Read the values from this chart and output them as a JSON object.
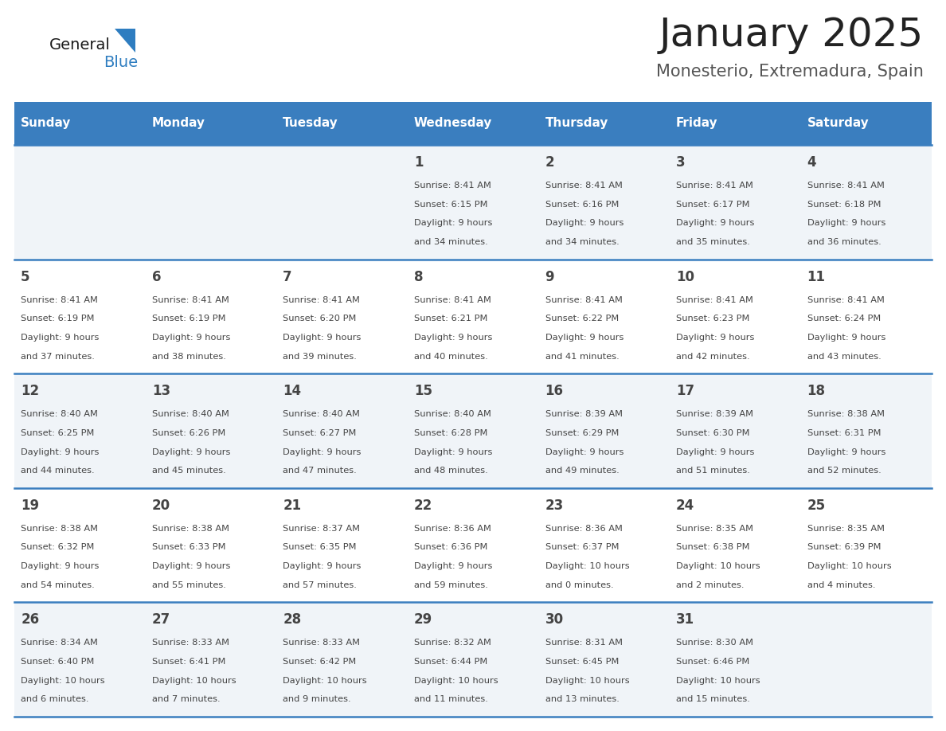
{
  "title": "January 2025",
  "subtitle": "Monesterio, Extremadura, Spain",
  "days_of_week": [
    "Sunday",
    "Monday",
    "Tuesday",
    "Wednesday",
    "Thursday",
    "Friday",
    "Saturday"
  ],
  "header_bg": "#3a7ebf",
  "header_text": "#ffffff",
  "cell_bg_odd": "#f0f4f8",
  "cell_bg_even": "#ffffff",
  "line_color": "#3a7ebf",
  "text_color": "#444444",
  "calendar_data": [
    [
      null,
      null,
      null,
      {
        "day": 1,
        "sunrise": "8:41 AM",
        "sunset": "6:15 PM",
        "dl_hours": 9,
        "dl_minutes": 34
      },
      {
        "day": 2,
        "sunrise": "8:41 AM",
        "sunset": "6:16 PM",
        "dl_hours": 9,
        "dl_minutes": 34
      },
      {
        "day": 3,
        "sunrise": "8:41 AM",
        "sunset": "6:17 PM",
        "dl_hours": 9,
        "dl_minutes": 35
      },
      {
        "day": 4,
        "sunrise": "8:41 AM",
        "sunset": "6:18 PM",
        "dl_hours": 9,
        "dl_minutes": 36
      }
    ],
    [
      {
        "day": 5,
        "sunrise": "8:41 AM",
        "sunset": "6:19 PM",
        "dl_hours": 9,
        "dl_minutes": 37
      },
      {
        "day": 6,
        "sunrise": "8:41 AM",
        "sunset": "6:19 PM",
        "dl_hours": 9,
        "dl_minutes": 38
      },
      {
        "day": 7,
        "sunrise": "8:41 AM",
        "sunset": "6:20 PM",
        "dl_hours": 9,
        "dl_minutes": 39
      },
      {
        "day": 8,
        "sunrise": "8:41 AM",
        "sunset": "6:21 PM",
        "dl_hours": 9,
        "dl_minutes": 40
      },
      {
        "day": 9,
        "sunrise": "8:41 AM",
        "sunset": "6:22 PM",
        "dl_hours": 9,
        "dl_minutes": 41
      },
      {
        "day": 10,
        "sunrise": "8:41 AM",
        "sunset": "6:23 PM",
        "dl_hours": 9,
        "dl_minutes": 42
      },
      {
        "day": 11,
        "sunrise": "8:41 AM",
        "sunset": "6:24 PM",
        "dl_hours": 9,
        "dl_minutes": 43
      }
    ],
    [
      {
        "day": 12,
        "sunrise": "8:40 AM",
        "sunset": "6:25 PM",
        "dl_hours": 9,
        "dl_minutes": 44
      },
      {
        "day": 13,
        "sunrise": "8:40 AM",
        "sunset": "6:26 PM",
        "dl_hours": 9,
        "dl_minutes": 45
      },
      {
        "day": 14,
        "sunrise": "8:40 AM",
        "sunset": "6:27 PM",
        "dl_hours": 9,
        "dl_minutes": 47
      },
      {
        "day": 15,
        "sunrise": "8:40 AM",
        "sunset": "6:28 PM",
        "dl_hours": 9,
        "dl_minutes": 48
      },
      {
        "day": 16,
        "sunrise": "8:39 AM",
        "sunset": "6:29 PM",
        "dl_hours": 9,
        "dl_minutes": 49
      },
      {
        "day": 17,
        "sunrise": "8:39 AM",
        "sunset": "6:30 PM",
        "dl_hours": 9,
        "dl_minutes": 51
      },
      {
        "day": 18,
        "sunrise": "8:38 AM",
        "sunset": "6:31 PM",
        "dl_hours": 9,
        "dl_minutes": 52
      }
    ],
    [
      {
        "day": 19,
        "sunrise": "8:38 AM",
        "sunset": "6:32 PM",
        "dl_hours": 9,
        "dl_minutes": 54
      },
      {
        "day": 20,
        "sunrise": "8:38 AM",
        "sunset": "6:33 PM",
        "dl_hours": 9,
        "dl_minutes": 55
      },
      {
        "day": 21,
        "sunrise": "8:37 AM",
        "sunset": "6:35 PM",
        "dl_hours": 9,
        "dl_minutes": 57
      },
      {
        "day": 22,
        "sunrise": "8:36 AM",
        "sunset": "6:36 PM",
        "dl_hours": 9,
        "dl_minutes": 59
      },
      {
        "day": 23,
        "sunrise": "8:36 AM",
        "sunset": "6:37 PM",
        "dl_hours": 10,
        "dl_minutes": 0
      },
      {
        "day": 24,
        "sunrise": "8:35 AM",
        "sunset": "6:38 PM",
        "dl_hours": 10,
        "dl_minutes": 2
      },
      {
        "day": 25,
        "sunrise": "8:35 AM",
        "sunset": "6:39 PM",
        "dl_hours": 10,
        "dl_minutes": 4
      }
    ],
    [
      {
        "day": 26,
        "sunrise": "8:34 AM",
        "sunset": "6:40 PM",
        "dl_hours": 10,
        "dl_minutes": 6
      },
      {
        "day": 27,
        "sunrise": "8:33 AM",
        "sunset": "6:41 PM",
        "dl_hours": 10,
        "dl_minutes": 7
      },
      {
        "day": 28,
        "sunrise": "8:33 AM",
        "sunset": "6:42 PM",
        "dl_hours": 10,
        "dl_minutes": 9
      },
      {
        "day": 29,
        "sunrise": "8:32 AM",
        "sunset": "6:44 PM",
        "dl_hours": 10,
        "dl_minutes": 11
      },
      {
        "day": 30,
        "sunrise": "8:31 AM",
        "sunset": "6:45 PM",
        "dl_hours": 10,
        "dl_minutes": 13
      },
      {
        "day": 31,
        "sunrise": "8:30 AM",
        "sunset": "6:46 PM",
        "dl_hours": 10,
        "dl_minutes": 15
      },
      null
    ]
  ],
  "title_fontsize": 36,
  "subtitle_fontsize": 15,
  "header_fontsize": 11,
  "day_num_fontsize": 12,
  "cell_text_fontsize": 8.2
}
